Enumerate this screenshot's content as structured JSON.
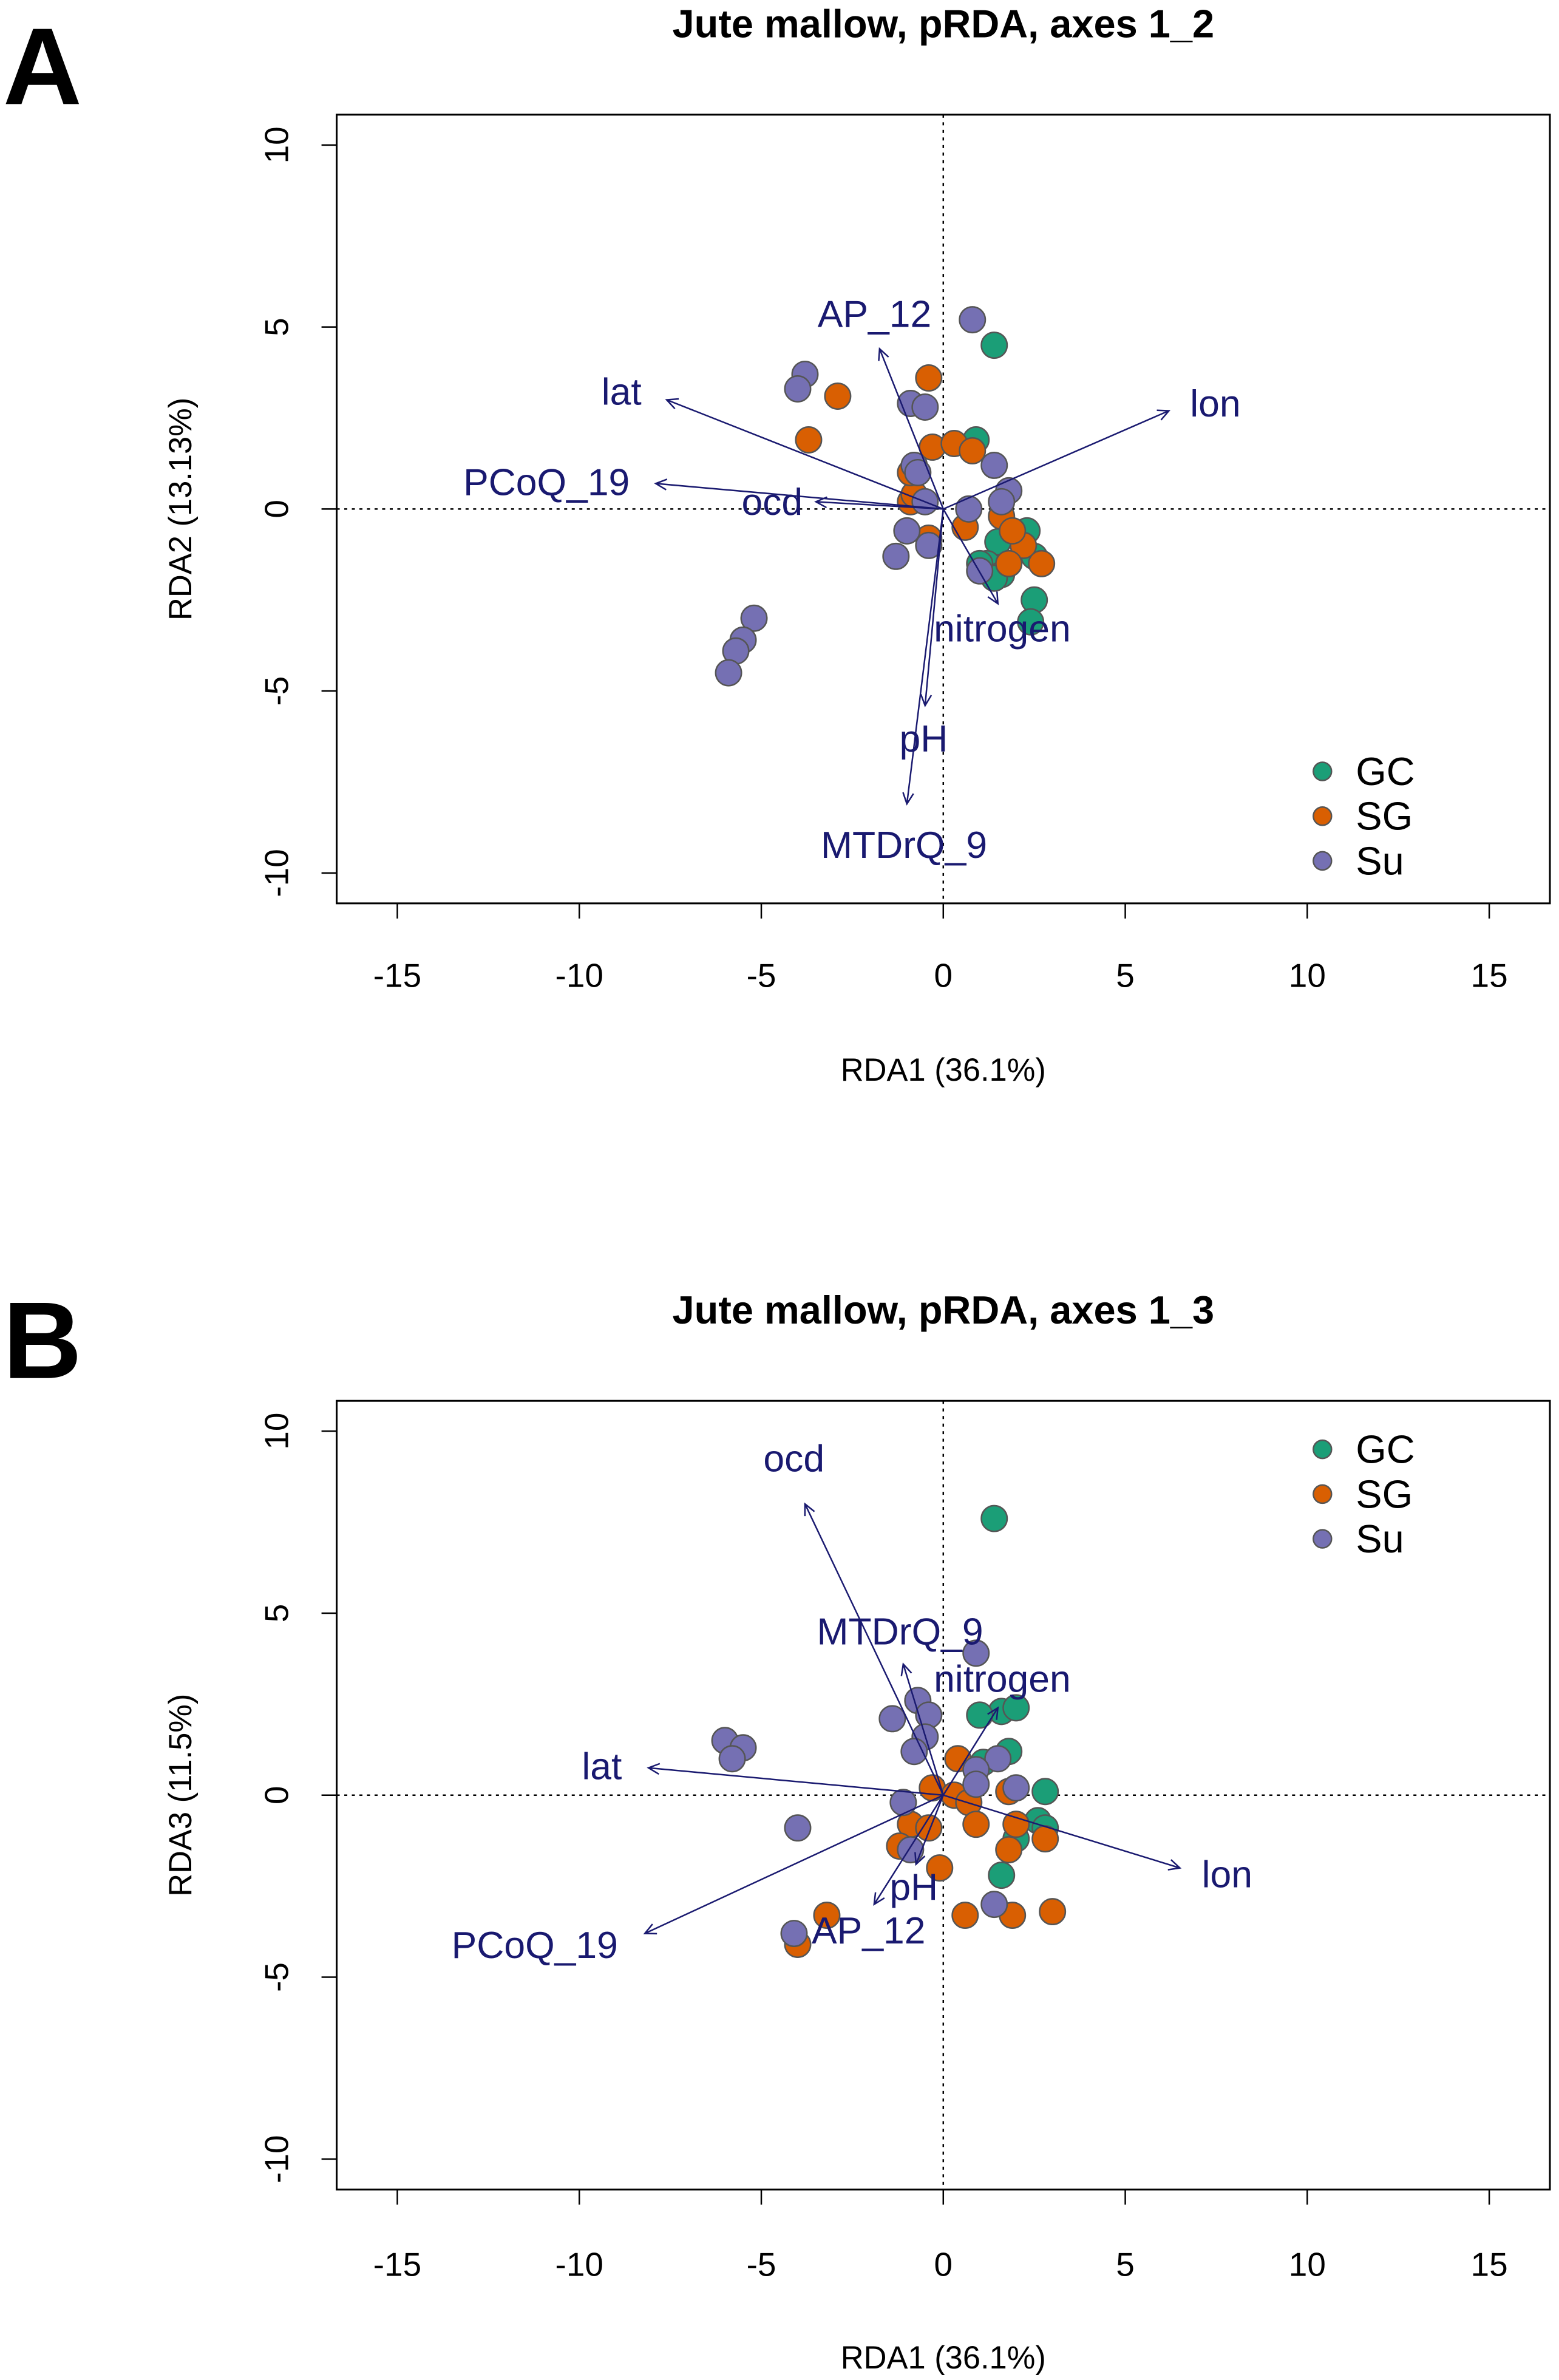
{
  "chart_data": [
    {
      "type": "scatter",
      "panel_label": "A",
      "title": "Jute mallow, pRDA, axes 1_2",
      "xlabel": "RDA1 (36.1%)",
      "ylabel": "RDA2 (13.13%)",
      "xlim": [
        -16.5,
        16.8
      ],
      "ylim": [
        -10.8,
        10.8
      ],
      "xticks": [
        -15,
        -10,
        -5,
        0,
        5,
        10,
        15
      ],
      "yticks": [
        -10,
        -5,
        0,
        5,
        10
      ],
      "legend_position": "bottom-right",
      "colors": {
        "GC": "#1b9e77",
        "SG": "#d95f02",
        "Su": "#7570b3"
      },
      "series": [
        {
          "name": "GC",
          "x": [
            1.4,
            0.9,
            1.5,
            2.3,
            2.5,
            1.2,
            1.6,
            1.4,
            2.5,
            2.4,
            1.8,
            1.0
          ],
          "y": [
            4.5,
            1.9,
            -0.9,
            -0.6,
            -1.3,
            -1.5,
            -1.8,
            -1.9,
            -2.5,
            -3.1,
            -1.5,
            -1.5
          ]
        },
        {
          "name": "SG",
          "x": [
            -0.4,
            -2.9,
            -3.7,
            -0.3,
            0.3,
            0.8,
            -0.9,
            0.6,
            1.6,
            -0.4,
            2.2,
            1.9,
            2.7,
            1.8,
            -0.8,
            -0.9
          ],
          "y": [
            3.6,
            3.1,
            1.9,
            1.7,
            1.8,
            1.6,
            0.2,
            -0.5,
            -0.2,
            -0.8,
            -1.0,
            -0.6,
            -1.5,
            -1.5,
            0.4,
            1.0
          ]
        },
        {
          "name": "Su",
          "x": [
            0.8,
            -3.8,
            -4.0,
            -0.9,
            -0.5,
            1.4,
            -0.8,
            -0.7,
            -0.5,
            1.8,
            1.6,
            0.7,
            -1.0,
            -1.3,
            -0.4,
            1.0,
            -5.2,
            -5.5,
            -5.7,
            -5.9
          ],
          "y": [
            5.2,
            3.7,
            3.3,
            2.9,
            2.8,
            1.2,
            1.2,
            1.0,
            0.2,
            0.5,
            0.2,
            0.0,
            -0.6,
            -1.3,
            -1.0,
            -1.7,
            -3.0,
            -3.6,
            -3.9,
            -4.5
          ]
        }
      ],
      "vectors": [
        {
          "name": "AP_12",
          "x": -1.75,
          "y": 4.4
        },
        {
          "name": "lat",
          "x": -7.6,
          "y": 3.0
        },
        {
          "name": "PCoQ_19",
          "x": -7.9,
          "y": 0.7
        },
        {
          "name": "ocd",
          "x": -3.5,
          "y": 0.2
        },
        {
          "name": "lon",
          "x": 6.2,
          "y": 2.7
        },
        {
          "name": "nitrogen",
          "x": 1.5,
          "y": -2.6
        },
        {
          "name": "pH",
          "x": -0.5,
          "y": -5.4
        },
        {
          "name": "MTDrQ_9",
          "x": -1.0,
          "y": -8.1
        }
      ]
    },
    {
      "type": "scatter",
      "panel_label": "B",
      "title": "Jute mallow, pRDA, axes 1_3",
      "xlabel": "RDA1 (36.1%)",
      "ylabel": "RDA3 (11.5%)",
      "xlim": [
        -16.5,
        16.8
      ],
      "ylim": [
        -10.8,
        10.8
      ],
      "xticks": [
        -15,
        -10,
        -5,
        0,
        5,
        10,
        15
      ],
      "yticks": [
        -10,
        -5,
        0,
        5,
        10
      ],
      "legend_position": "top-right",
      "colors": {
        "GC": "#1b9e77",
        "SG": "#d95f02",
        "Su": "#7570b3"
      },
      "series": [
        {
          "name": "GC",
          "x": [
            1.4,
            1.6,
            2.0,
            1.0,
            1.8,
            1.1,
            2.8,
            2.6,
            2.8,
            2.0,
            1.6
          ],
          "y": [
            7.6,
            2.3,
            2.4,
            2.2,
            1.2,
            0.9,
            0.1,
            -0.7,
            -0.9,
            -1.2,
            -2.2
          ]
        },
        {
          "name": "SG",
          "x": [
            0.4,
            -0.3,
            0.3,
            0.7,
            -0.9,
            -0.4,
            -1.2,
            -0.1,
            0.9,
            1.8,
            2.0,
            2.8,
            1.8,
            0.6,
            1.9,
            3.0,
            -3.2,
            -4.0
          ],
          "y": [
            1.0,
            0.2,
            0.0,
            -0.2,
            -0.8,
            -0.9,
            -1.4,
            -2.0,
            -0.8,
            0.1,
            -0.8,
            -1.2,
            -1.5,
            -3.3,
            -3.3,
            -3.2,
            -3.3,
            -4.1
          ]
        },
        {
          "name": "Su",
          "x": [
            0.9,
            -0.7,
            -1.4,
            -0.4,
            -0.5,
            -0.8,
            -6.0,
            -5.5,
            -5.8,
            1.5,
            0.9,
            0.9,
            2.0,
            -1.1,
            -4.0,
            -0.9,
            1.4,
            -4.1
          ],
          "y": [
            3.9,
            2.6,
            2.1,
            2.2,
            1.6,
            1.2,
            1.5,
            1.3,
            1.0,
            1.0,
            0.7,
            0.3,
            0.2,
            -0.2,
            -0.9,
            -1.5,
            -3.0,
            -3.8
          ]
        }
      ],
      "vectors": [
        {
          "name": "ocd",
          "x": -3.8,
          "y": 8.0
        },
        {
          "name": "MTDrQ_9",
          "x": -1.1,
          "y": 3.6
        },
        {
          "name": "nitrogen",
          "x": 1.5,
          "y": 2.4
        },
        {
          "name": "lat",
          "x": -8.1,
          "y": 0.75
        },
        {
          "name": "lon",
          "x": 6.5,
          "y": -2.0
        },
        {
          "name": "PCoQ_19",
          "x": -8.2,
          "y": -3.8
        },
        {
          "name": "AP_12",
          "x": -1.9,
          "y": -3.0
        },
        {
          "name": "pH",
          "x": -0.75,
          "y": -1.9
        }
      ]
    }
  ]
}
